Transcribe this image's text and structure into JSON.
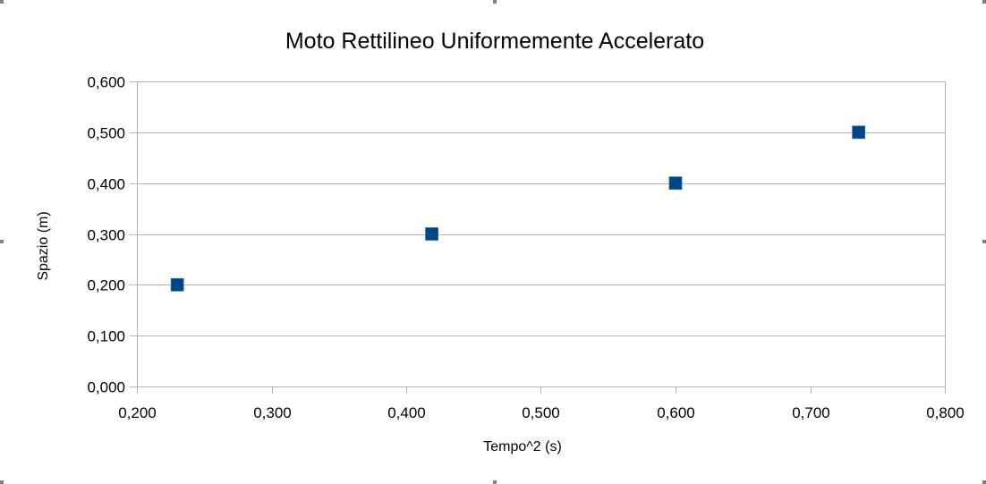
{
  "chart_data": {
    "type": "scatter",
    "title": "Moto Rettilineo Uniformemente Accelerato",
    "xlabel": "Tempo^2 (s)",
    "ylabel": "Spazio (m)",
    "xlim": [
      0.2,
      0.8
    ],
    "ylim": [
      0.0,
      0.6
    ],
    "x_ticks": [
      "0,200",
      "0,300",
      "0,400",
      "0,500",
      "0,600",
      "0,700",
      "0,800"
    ],
    "y_ticks": [
      "0,000",
      "0,100",
      "0,200",
      "0,300",
      "0,400",
      "0,500",
      "0,600"
    ],
    "grid": "horizontal",
    "legend": "none",
    "series": [
      {
        "marker": "square",
        "color": "#004586",
        "points": [
          {
            "x": 0.23,
            "y": 0.2
          },
          {
            "x": 0.419,
            "y": 0.3
          },
          {
            "x": 0.6,
            "y": 0.4
          },
          {
            "x": 0.736,
            "y": 0.5
          }
        ]
      }
    ]
  },
  "colors": {
    "gridline": "#b3b3b3",
    "axis": "#b3b3b3",
    "marker": "#004586",
    "frame_handle": "#808080"
  }
}
